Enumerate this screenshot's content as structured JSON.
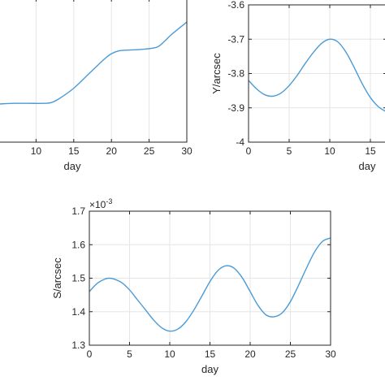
{
  "chart_data": [
    {
      "type": "line",
      "panel": "top-left",
      "xlabel": "day",
      "ylabel": "",
      "xlim": [
        5,
        30
      ],
      "ylim": [
        0,
        1
      ],
      "xticks": [
        10,
        15,
        20,
        25,
        30
      ],
      "yticks": [],
      "grid": true,
      "color": "#4a9bd6",
      "series": [
        {
          "x": [
            5,
            7,
            9,
            11,
            12,
            13,
            15,
            17,
            19,
            20,
            21,
            22,
            24,
            26,
            27,
            28,
            30
          ],
          "y": [
            0.265,
            0.27,
            0.27,
            0.27,
            0.275,
            0.3,
            0.375,
            0.475,
            0.575,
            0.615,
            0.635,
            0.64,
            0.645,
            0.66,
            0.7,
            0.75,
            0.835
          ]
        }
      ]
    },
    {
      "type": "line",
      "panel": "top-right",
      "xlabel": "day",
      "ylabel": "Y/arcsec",
      "xlim": [
        0,
        17
      ],
      "ylim": [
        -4,
        -3.6
      ],
      "xticks": [
        0,
        5,
        10,
        15
      ],
      "xtick_labels": [
        "0",
        "5",
        "10",
        "15"
      ],
      "yticks": [
        -4,
        -3.9,
        -3.8,
        -3.7,
        -3.6
      ],
      "ytick_labels": [
        "-4",
        "-3.9",
        "-3.8",
        "-3.7",
        "-3.6"
      ],
      "grid": true,
      "color": "#4a9bd6",
      "series": [
        {
          "x": [
            0,
            1,
            2,
            3,
            4,
            5,
            6,
            7,
            8,
            9,
            10,
            11,
            12,
            13,
            14,
            15,
            16,
            17
          ],
          "y": [
            -3.82,
            -3.845,
            -3.862,
            -3.866,
            -3.857,
            -3.835,
            -3.805,
            -3.77,
            -3.738,
            -3.712,
            -3.7,
            -3.708,
            -3.738,
            -3.782,
            -3.83,
            -3.87,
            -3.897,
            -3.912
          ]
        }
      ]
    },
    {
      "type": "line",
      "panel": "bottom",
      "xlabel": "day",
      "ylabel": "S/arcsec",
      "exponent_label": "×10",
      "exponent_power": "-3",
      "xlim": [
        0,
        30
      ],
      "ylim": [
        1.3,
        1.7
      ],
      "xticks": [
        0,
        5,
        10,
        15,
        20,
        25,
        30
      ],
      "xtick_labels": [
        "0",
        "5",
        "10",
        "15",
        "20",
        "25",
        "30"
      ],
      "yticks": [
        1.3,
        1.4,
        1.5,
        1.6,
        1.7
      ],
      "ytick_labels": [
        "1.3",
        "1.4",
        "1.5",
        "1.6",
        "1.7"
      ],
      "grid": true,
      "color": "#4a9bd6",
      "series": [
        {
          "x": [
            0,
            1,
            2,
            2.5,
            3,
            4,
            5,
            6,
            7,
            8,
            9,
            10,
            11,
            12,
            13,
            14,
            15,
            16,
            17,
            18,
            19,
            20,
            21,
            22,
            23,
            24,
            25,
            26,
            27,
            28,
            29,
            30
          ],
          "y": [
            1.46,
            1.485,
            1.498,
            1.5,
            1.498,
            1.487,
            1.465,
            1.435,
            1.405,
            1.375,
            1.352,
            1.342,
            1.348,
            1.37,
            1.405,
            1.447,
            1.49,
            1.523,
            1.537,
            1.53,
            1.502,
            1.46,
            1.418,
            1.39,
            1.385,
            1.397,
            1.43,
            1.478,
            1.53,
            1.578,
            1.61,
            1.62
          ]
        }
      ]
    }
  ]
}
